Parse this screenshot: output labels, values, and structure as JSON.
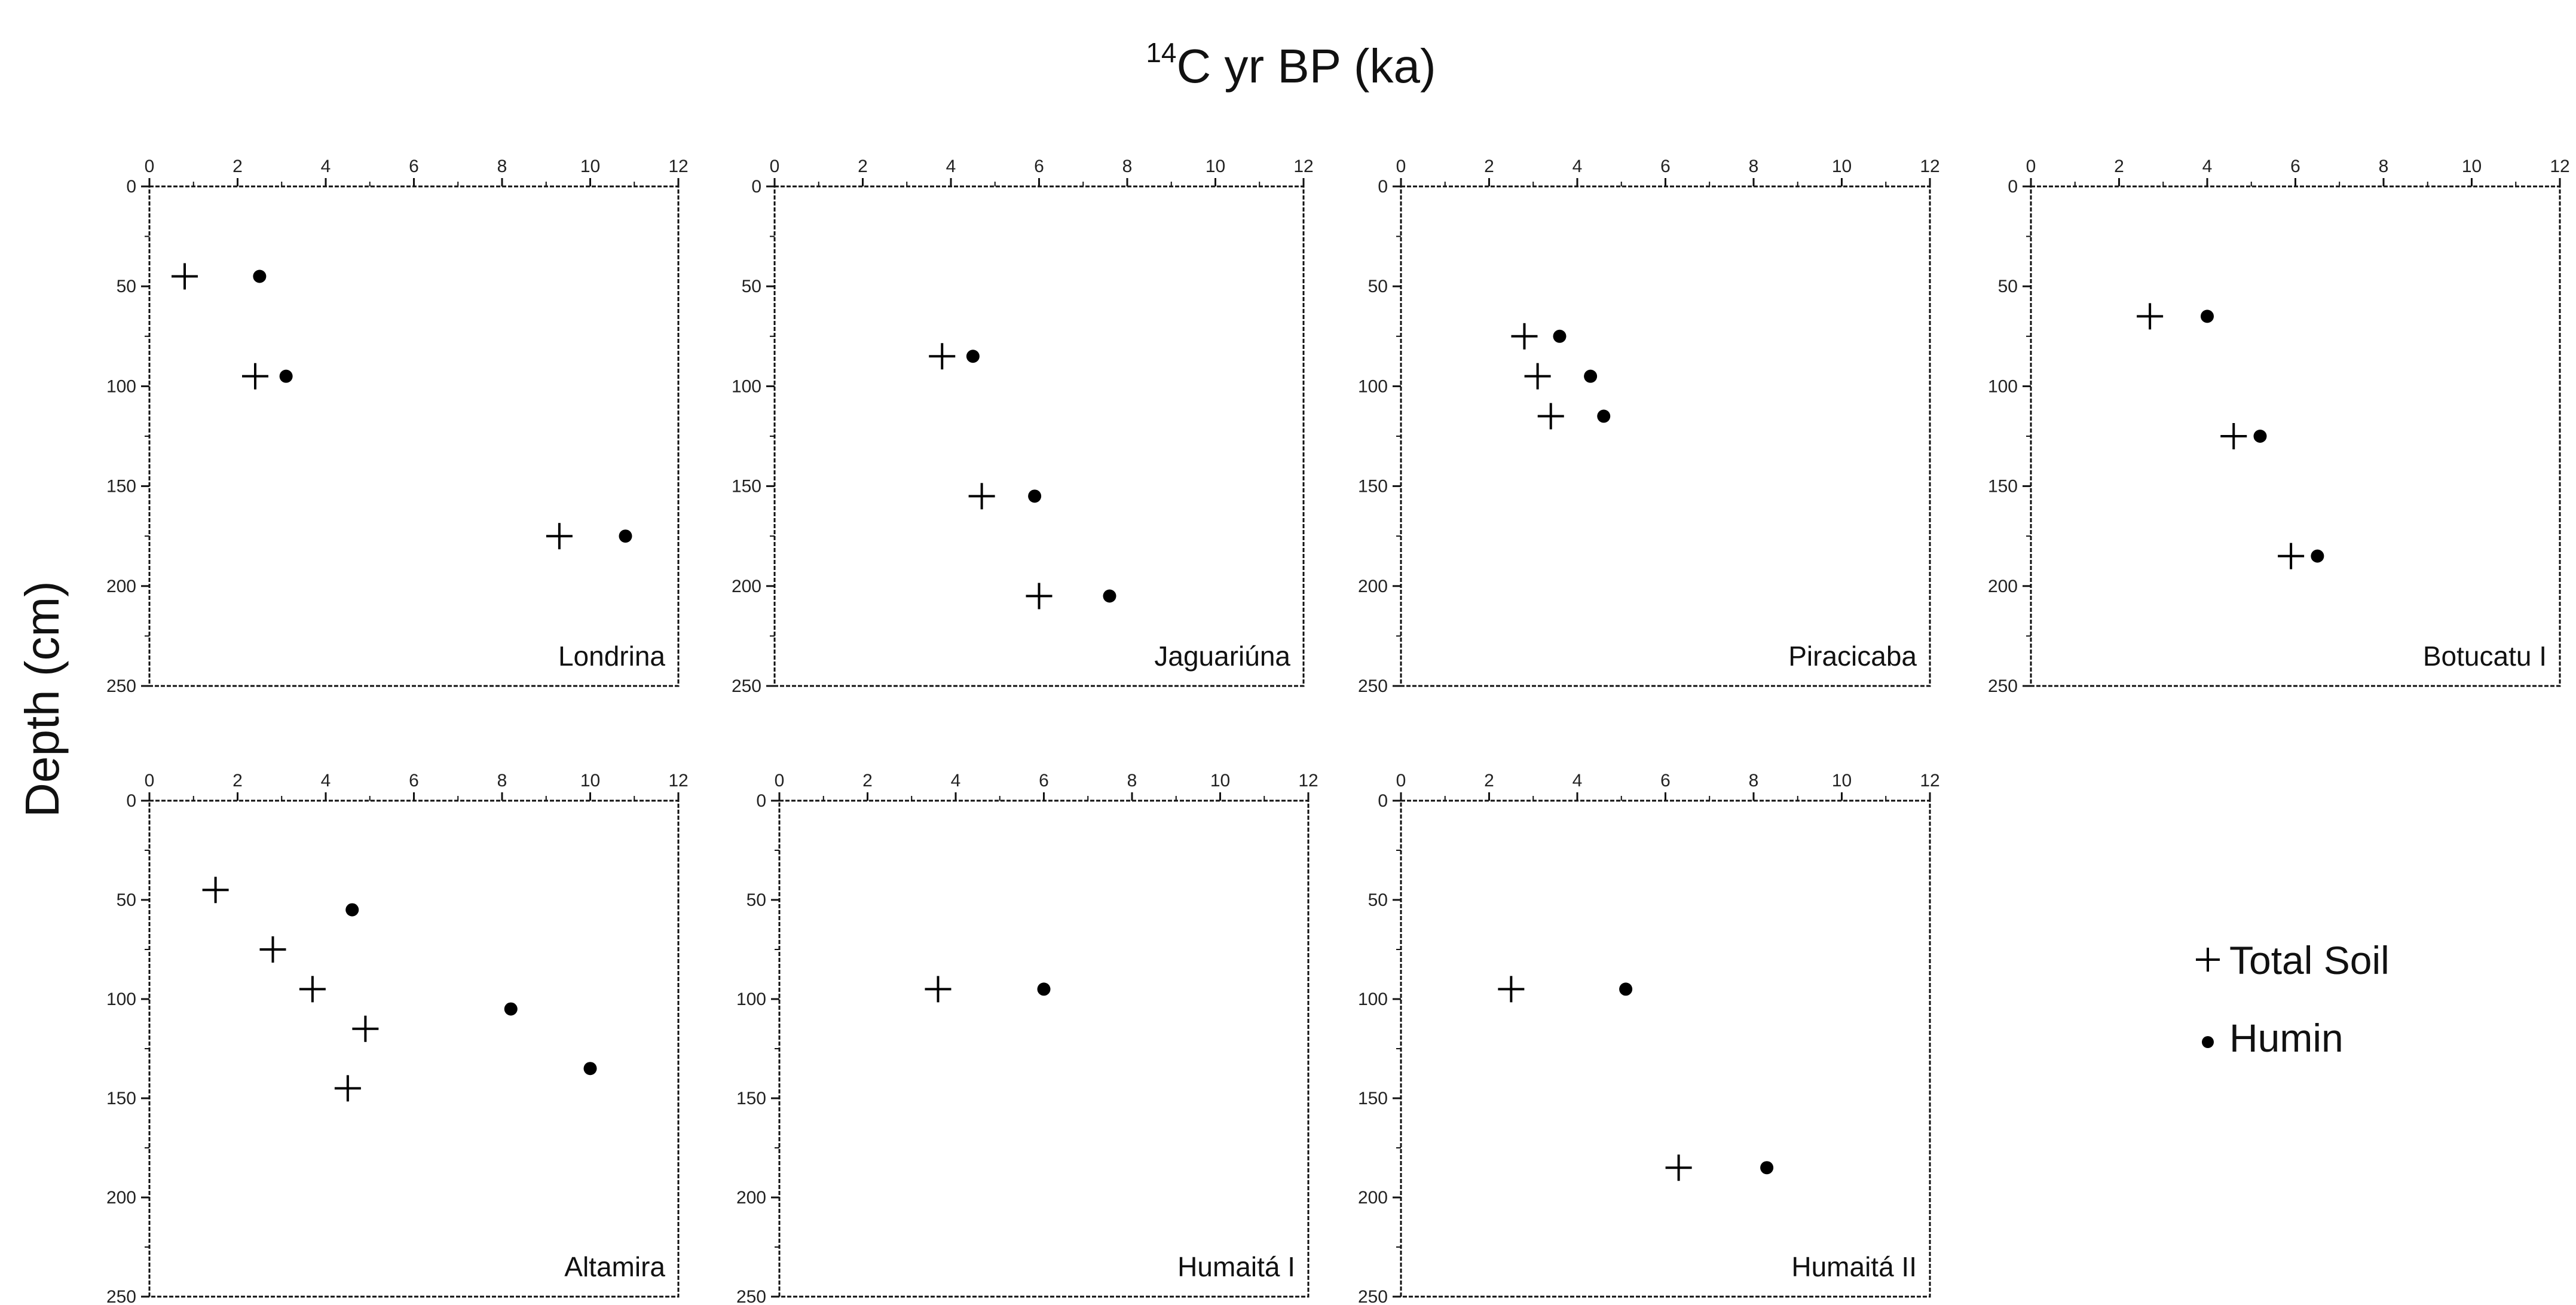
{
  "figure": {
    "title_sup": "14",
    "title_main": "C yr BP (ka)",
    "ylabel": "Depth (cm)"
  },
  "legend": {
    "total_soil_label": "Total Soil",
    "humin_label": "Humin"
  },
  "chart_data": [
    {
      "type": "scatter",
      "site": "Londrina",
      "xlim": [
        0,
        12
      ],
      "ylim": [
        0,
        250
      ],
      "x_ticks": [
        "0",
        "2",
        "4",
        "6",
        "8",
        "10",
        "12"
      ],
      "y_ticks": [
        "0",
        "50",
        "100",
        "150",
        "200",
        "250"
      ],
      "series": [
        {
          "name": "Total Soil",
          "points": [
            {
              "x": 0.8,
              "y": 45
            },
            {
              "x": 2.4,
              "y": 95
            },
            {
              "x": 9.3,
              "y": 175
            }
          ]
        },
        {
          "name": "Humin",
          "points": [
            {
              "x": 2.5,
              "y": 45
            },
            {
              "x": 3.1,
              "y": 95
            },
            {
              "x": 10.8,
              "y": 175
            }
          ]
        }
      ]
    },
    {
      "type": "scatter",
      "site": "Jaguariúna",
      "xlim": [
        0,
        12
      ],
      "ylim": [
        0,
        250
      ],
      "x_ticks": [
        "0",
        "2",
        "4",
        "6",
        "8",
        "10",
        "12"
      ],
      "y_ticks": [
        "0",
        "50",
        "100",
        "150",
        "200",
        "250"
      ],
      "series": [
        {
          "name": "Total Soil",
          "points": [
            {
              "x": 3.8,
              "y": 85
            },
            {
              "x": 4.7,
              "y": 155
            },
            {
              "x": 6.0,
              "y": 205
            }
          ]
        },
        {
          "name": "Humin",
          "points": [
            {
              "x": 4.5,
              "y": 85
            },
            {
              "x": 5.9,
              "y": 155
            },
            {
              "x": 7.6,
              "y": 205
            }
          ]
        }
      ]
    },
    {
      "type": "scatter",
      "site": "Piracicaba",
      "xlim": [
        0,
        12
      ],
      "ylim": [
        0,
        250
      ],
      "x_ticks": [
        "0",
        "2",
        "4",
        "6",
        "8",
        "10",
        "12"
      ],
      "y_ticks": [
        "0",
        "50",
        "100",
        "150",
        "200",
        "250"
      ],
      "series": [
        {
          "name": "Total Soil",
          "points": [
            {
              "x": 2.8,
              "y": 75
            },
            {
              "x": 3.1,
              "y": 95
            },
            {
              "x": 3.4,
              "y": 115
            }
          ]
        },
        {
          "name": "Humin",
          "points": [
            {
              "x": 3.6,
              "y": 75
            },
            {
              "x": 4.3,
              "y": 95
            },
            {
              "x": 4.6,
              "y": 115
            }
          ]
        }
      ]
    },
    {
      "type": "scatter",
      "site": "Botucatu I",
      "xlim": [
        0,
        12
      ],
      "ylim": [
        0,
        250
      ],
      "x_ticks": [
        "0",
        "2",
        "4",
        "6",
        "8",
        "10",
        "12"
      ],
      "y_ticks": [
        "0",
        "50",
        "100",
        "150",
        "200",
        "250"
      ],
      "series": [
        {
          "name": "Total Soil",
          "points": [
            {
              "x": 2.7,
              "y": 65
            },
            {
              "x": 4.6,
              "y": 125
            },
            {
              "x": 5.9,
              "y": 185
            }
          ]
        },
        {
          "name": "Humin",
          "points": [
            {
              "x": 4.0,
              "y": 65
            },
            {
              "x": 5.2,
              "y": 125
            },
            {
              "x": 6.5,
              "y": 185
            }
          ]
        }
      ]
    },
    {
      "type": "scatter",
      "site": "Altamira",
      "xlim": [
        0,
        12
      ],
      "ylim": [
        0,
        250
      ],
      "x_ticks": [
        "0",
        "2",
        "4",
        "6",
        "8",
        "10",
        "12"
      ],
      "y_ticks": [
        "0",
        "50",
        "100",
        "150",
        "200",
        "250"
      ],
      "series": [
        {
          "name": "Total Soil",
          "points": [
            {
              "x": 1.5,
              "y": 45
            },
            {
              "x": 2.8,
              "y": 75
            },
            {
              "x": 3.7,
              "y": 95
            },
            {
              "x": 4.9,
              "y": 115
            },
            {
              "x": 4.5,
              "y": 145
            }
          ]
        },
        {
          "name": "Humin",
          "points": [
            {
              "x": 4.6,
              "y": 55
            },
            {
              "x": 8.2,
              "y": 105
            },
            {
              "x": 10.0,
              "y": 135
            }
          ]
        }
      ]
    },
    {
      "type": "scatter",
      "site": "Humaitá I",
      "xlim": [
        0,
        12
      ],
      "ylim": [
        0,
        250
      ],
      "x_ticks": [
        "0",
        "2",
        "4",
        "6",
        "8",
        "10",
        "12"
      ],
      "y_ticks": [
        "0",
        "50",
        "100",
        "150",
        "200",
        "250"
      ],
      "series": [
        {
          "name": "Total Soil",
          "points": [
            {
              "x": 3.6,
              "y": 95
            }
          ]
        },
        {
          "name": "Humin",
          "points": [
            {
              "x": 6.0,
              "y": 95
            }
          ]
        }
      ]
    },
    {
      "type": "scatter",
      "site": "Humaitá II",
      "xlim": [
        0,
        12
      ],
      "ylim": [
        0,
        250
      ],
      "x_ticks": [
        "0",
        "2",
        "4",
        "6",
        "8",
        "10",
        "12"
      ],
      "y_ticks": [
        "0",
        "50",
        "100",
        "150",
        "200",
        "250"
      ],
      "series": [
        {
          "name": "Total Soil",
          "points": [
            {
              "x": 2.5,
              "y": 95
            },
            {
              "x": 6.3,
              "y": 185
            }
          ]
        },
        {
          "name": "Humin",
          "points": [
            {
              "x": 5.1,
              "y": 95
            },
            {
              "x": 8.3,
              "y": 185
            }
          ]
        }
      ]
    }
  ]
}
